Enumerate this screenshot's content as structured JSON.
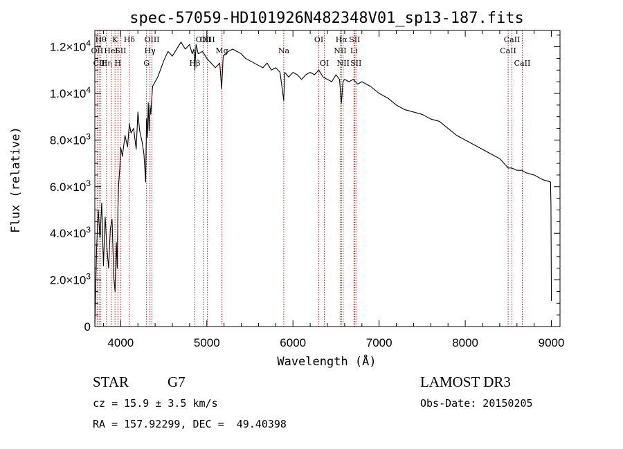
{
  "chart_data": {
    "type": "line",
    "title": "spec-57059-HD101926N482348V01_sp13-187.fits",
    "xlabel": "Wavelength (Å)",
    "ylabel": "Flux (relative)",
    "xlim": [
      3700,
      9100
    ],
    "ylim": [
      0,
      12700
    ],
    "x_ticks": [
      {
        "value": 4000,
        "label": "4000"
      },
      {
        "value": 5000,
        "label": "5000"
      },
      {
        "value": 6000,
        "label": "6000"
      },
      {
        "value": 7000,
        "label": "7000"
      },
      {
        "value": 8000,
        "label": "8000"
      },
      {
        "value": 9000,
        "label": "9000"
      }
    ],
    "y_ticks": [
      {
        "value": 0,
        "mantissa": "0",
        "exponent": ""
      },
      {
        "value": 2000,
        "mantissa": "2.0×10",
        "exponent": "3"
      },
      {
        "value": 4000,
        "mantissa": "4.0×10",
        "exponent": "3"
      },
      {
        "value": 6000,
        "mantissa": "6.0×10",
        "exponent": "3"
      },
      {
        "value": 8000,
        "mantissa": "8.0×10",
        "exponent": "3"
      },
      {
        "value": 10000,
        "mantissa": "1.0×10",
        "exponent": "4"
      },
      {
        "value": 12000,
        "mantissa": "1.2×10",
        "exponent": "4"
      }
    ],
    "series": [
      {
        "name": "spectrum",
        "x": [
          3700,
          3720,
          3740,
          3760,
          3780,
          3800,
          3820,
          3840,
          3860,
          3880,
          3900,
          3920,
          3935,
          3950,
          3960,
          3968,
          3975,
          3990,
          4000,
          4020,
          4050,
          4080,
          4101,
          4120,
          4150,
          4180,
          4200,
          4220,
          4250,
          4270,
          4290,
          4300,
          4310,
          4320,
          4330,
          4340,
          4350,
          4370,
          4400,
          4430,
          4460,
          4500,
          4550,
          4600,
          4650,
          4700,
          4750,
          4800,
          4830,
          4850,
          4861,
          4875,
          4900,
          4950,
          5000,
          5050,
          5100,
          5150,
          5172,
          5190,
          5250,
          5300,
          5350,
          5400,
          5450,
          5500,
          5550,
          5600,
          5650,
          5700,
          5750,
          5800,
          5850,
          5893,
          5905,
          5950,
          6000,
          6050,
          6100,
          6150,
          6200,
          6250,
          6300,
          6350,
          6400,
          6450,
          6500,
          6540,
          6563,
          6580,
          6600,
          6650,
          6700,
          6750,
          6800,
          6900,
          7000,
          7100,
          7200,
          7300,
          7400,
          7500,
          7600,
          7700,
          7800,
          7900,
          8000,
          8100,
          8200,
          8300,
          8400,
          8500,
          8540,
          8600,
          8660,
          8700,
          8800,
          8900,
          8990,
          8995,
          9000
        ],
        "values": [
          0,
          3300,
          5000,
          3800,
          5300,
          2600,
          4700,
          3400,
          2500,
          4200,
          4600,
          2100,
          1500,
          3600,
          2500,
          5000,
          6000,
          6800,
          7700,
          7300,
          8200,
          7700,
          8700,
          8300,
          8500,
          7600,
          9200,
          8400,
          7900,
          7400,
          6200,
          8900,
          8100,
          9600,
          8400,
          9500,
          9100,
          10300,
          10500,
          10700,
          11000,
          11400,
          11800,
          11600,
          11900,
          12200,
          11900,
          12100,
          11700,
          11900,
          11000,
          12100,
          11700,
          11800,
          11500,
          11300,
          11100,
          11300,
          10200,
          11600,
          11800,
          11900,
          11800,
          11700,
          11500,
          11400,
          11300,
          11200,
          11100,
          11300,
          11000,
          11100,
          10900,
          9700,
          10900,
          10700,
          10900,
          10800,
          10600,
          10800,
          10900,
          10800,
          11000,
          10700,
          10600,
          10500,
          10800,
          10600,
          9600,
          10500,
          10600,
          10500,
          10600,
          10400,
          10500,
          10300,
          10000,
          9800,
          9500,
          9300,
          9200,
          9100,
          8900,
          8800,
          8500,
          8200,
          8000,
          7800,
          7600,
          7400,
          7200,
          6800,
          6800,
          6700,
          6700,
          6600,
          6500,
          6300,
          6200,
          5200,
          1100
        ]
      }
    ],
    "line_markers": [
      {
        "wavelength": 3727,
        "label": "OII",
        "row": 2
      },
      {
        "wavelength": 3750,
        "label": "CII",
        "row": 3
      },
      {
        "wavelength": 3770,
        "label": "Hθ",
        "row": 1
      },
      {
        "wavelength": 3835,
        "label": "Hη",
        "row": 3
      },
      {
        "wavelength": 3889,
        "label": "HeI",
        "row": 2
      },
      {
        "wavelength": 3934,
        "label": "K",
        "row": 1
      },
      {
        "wavelength": 3968,
        "label": "H",
        "row": 3
      },
      {
        "wavelength": 4000,
        "label": "SII",
        "row": 2
      },
      {
        "wavelength": 4101,
        "label": "Hδ",
        "row": 1
      },
      {
        "wavelength": 4300,
        "label": "G",
        "row": 3
      },
      {
        "wavelength": 4340,
        "label": "Hγ",
        "row": 2
      },
      {
        "wavelength": 4363,
        "label": "OIII",
        "row": 1
      },
      {
        "wavelength": 4861,
        "label": "Hβ",
        "row": 3
      },
      {
        "wavelength": 4959,
        "label": "OIII",
        "row": 1
      },
      {
        "wavelength": 5007,
        "label": "OIII",
        "row": 1
      },
      {
        "wavelength": 5175,
        "label": "Mg",
        "row": 2
      },
      {
        "wavelength": 5893,
        "label": "Na",
        "row": 2
      },
      {
        "wavelength": 6300,
        "label": "OI",
        "row": 1
      },
      {
        "wavelength": 6364,
        "label": "OI",
        "row": 3
      },
      {
        "wavelength": 6548,
        "label": "NII",
        "row": 2
      },
      {
        "wavelength": 6563,
        "label": "Hα",
        "row": 1
      },
      {
        "wavelength": 6583,
        "label": "NII",
        "row": 3
      },
      {
        "wavelength": 6708,
        "label": "Li",
        "row": 2
      },
      {
        "wavelength": 6716,
        "label": "SII",
        "row": 1
      },
      {
        "wavelength": 6731,
        "label": "SII",
        "row": 3
      },
      {
        "wavelength": 8498,
        "label": "CaII",
        "row": 2
      },
      {
        "wavelength": 8542,
        "label": "CaII",
        "row": 1
      },
      {
        "wavelength": 8662,
        "label": "CaII",
        "row": 3
      }
    ]
  },
  "info": {
    "object_class": "STAR",
    "subclass": "G7",
    "redshift_line": "cz = 15.9 ± 3.5 km/s",
    "coord_line": "RA = 157.92299, DEC =  49.40398",
    "survey": "LAMOST DR3",
    "obs_date": "Obs-Date: 20150205"
  },
  "colors": {
    "spectrum": "#000000",
    "marker": "#b22222",
    "axes": "#000000",
    "background": "#ffffff"
  }
}
